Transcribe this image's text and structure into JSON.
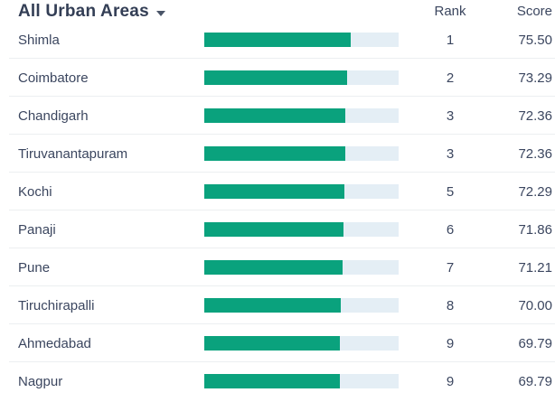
{
  "header": {
    "filter_label": "All Urban Areas",
    "dropdown_icon": "chevron-down",
    "rank_col": "Rank",
    "score_col": "Score"
  },
  "colors": {
    "bar_fill": "#0AA27D",
    "bar_track": "#E4EEF5",
    "text_dark": "#333E55",
    "text_body": "#3B465F",
    "separator": "#ECEFF1"
  },
  "chart_data": {
    "type": "bar",
    "orientation": "horizontal",
    "title": "All Urban Areas",
    "categories": [
      "Shimla",
      "Coimbatore",
      "Chandigarh",
      "Tiruvanantapuram",
      "Kochi",
      "Panaji",
      "Pune",
      "Tiruchirapalli",
      "Ahmedabad",
      "Nagpur"
    ],
    "values": [
      75.5,
      73.29,
      72.36,
      72.36,
      72.29,
      71.86,
      71.21,
      70.0,
      69.79,
      69.79
    ],
    "ranks": [
      1,
      2,
      3,
      3,
      5,
      6,
      7,
      8,
      9,
      9
    ],
    "xlim": [
      0,
      100
    ],
    "grid": false,
    "legend": false
  },
  "rows": [
    {
      "city": "Shimla",
      "rank": "1",
      "score": "75.50",
      "value": 75.5
    },
    {
      "city": "Coimbatore",
      "rank": "2",
      "score": "73.29",
      "value": 73.29
    },
    {
      "city": "Chandigarh",
      "rank": "3",
      "score": "72.36",
      "value": 72.36
    },
    {
      "city": "Tiruvanantapuram",
      "rank": "3",
      "score": "72.36",
      "value": 72.36
    },
    {
      "city": "Kochi",
      "rank": "5",
      "score": "72.29",
      "value": 72.29
    },
    {
      "city": "Panaji",
      "rank": "6",
      "score": "71.86",
      "value": 71.86
    },
    {
      "city": "Pune",
      "rank": "7",
      "score": "71.21",
      "value": 71.21
    },
    {
      "city": "Tiruchirapalli",
      "rank": "8",
      "score": "70.00",
      "value": 70.0
    },
    {
      "city": "Ahmedabad",
      "rank": "9",
      "score": "69.79",
      "value": 69.79
    },
    {
      "city": "Nagpur",
      "rank": "9",
      "score": "69.79",
      "value": 69.79
    }
  ]
}
